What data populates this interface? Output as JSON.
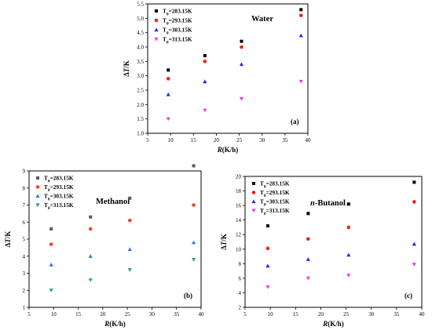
{
  "chart_data": [
    {
      "type": "scatter",
      "panel_label": "(a)",
      "title": "Water",
      "title_italic": false,
      "xlabel": "R(K/h)",
      "ylabel": "ΔT/K",
      "xlim": [
        5,
        40
      ],
      "ylim": [
        1.0,
        5.5
      ],
      "xticks": [
        5,
        10,
        15,
        20,
        25,
        30,
        35,
        40
      ],
      "yticks": [
        1.0,
        1.5,
        2.0,
        2.5,
        3.0,
        3.5,
        4.0,
        4.5,
        5.0,
        5.5
      ],
      "ytick_decimals": 1,
      "x": [
        9.5,
        17.5,
        25.5,
        38.5
      ],
      "legend_placement": "top-left",
      "series": [
        {
          "name": "T0=283.15K",
          "marker": "square",
          "color": "#000000",
          "values": [
            3.2,
            3.7,
            4.2,
            5.3
          ]
        },
        {
          "name": "T0=293.15K",
          "marker": "circle",
          "color": "#e8251b",
          "values": [
            2.9,
            3.5,
            4.0,
            5.1
          ]
        },
        {
          "name": "T0=303.15K",
          "marker": "triangle-up",
          "color": "#1f2fe0",
          "values": [
            2.35,
            2.8,
            3.4,
            4.4
          ]
        },
        {
          "name": "T0=313.15K",
          "marker": "triangle-down",
          "color": "#e83ee0",
          "values": [
            1.5,
            1.8,
            2.2,
            2.8
          ]
        }
      ]
    },
    {
      "type": "scatter",
      "panel_label": "(b)",
      "title": "Methanol",
      "title_italic": false,
      "xlabel": "R(K/h)",
      "ylabel": "ΔT/K",
      "xlim": [
        5,
        40
      ],
      "ylim": [
        1,
        9
      ],
      "xticks": [
        5,
        10,
        15,
        20,
        25,
        30,
        35,
        40
      ],
      "yticks": [
        1,
        2,
        3,
        4,
        5,
        6,
        7,
        8,
        9
      ],
      "ytick_decimals": 0,
      "x": [
        9.5,
        17.5,
        25.5,
        38.5
      ],
      "legend_placement": "top-left",
      "series": [
        {
          "name": "T0=283.15K",
          "marker": "square",
          "color": "#595959",
          "values": [
            5.6,
            6.3,
            7.4,
            9.3
          ]
        },
        {
          "name": "T0=293.15K",
          "marker": "circle",
          "color": "#f0472c",
          "values": [
            4.7,
            5.6,
            6.1,
            7.0
          ]
        },
        {
          "name": "T0=303.15K",
          "marker": "triangle-up",
          "color": "#2a78e0",
          "values": [
            3.5,
            4.0,
            4.4,
            4.8
          ]
        },
        {
          "name": "T0=313.15K",
          "marker": "triangle-down",
          "color": "#27a07a",
          "values": [
            2.0,
            2.6,
            3.2,
            3.8
          ]
        }
      ]
    },
    {
      "type": "scatter",
      "panel_label": "(c)",
      "title_prefix": "n",
      "title": "-Butanol",
      "title_italic": false,
      "xlabel": "R(K/h)",
      "ylabel": "ΔT/K",
      "xlim": [
        5,
        40
      ],
      "ylim": [
        2,
        20
      ],
      "xticks": [
        5,
        10,
        15,
        20,
        25,
        30,
        35,
        40
      ],
      "yticks": [
        2,
        4,
        6,
        8,
        10,
        12,
        14,
        16,
        18,
        20
      ],
      "ytick_decimals": 0,
      "x": [
        9.5,
        17.5,
        25.5,
        38.5
      ],
      "legend_placement": "top-left",
      "series": [
        {
          "name": "T0=283.15K",
          "marker": "square",
          "color": "#000000",
          "values": [
            13.2,
            14.9,
            16.2,
            19.2
          ]
        },
        {
          "name": "T0=293.15K",
          "marker": "circle",
          "color": "#e8251b",
          "values": [
            10.1,
            11.4,
            13.0,
            16.5
          ]
        },
        {
          "name": "T0=303.15K",
          "marker": "triangle-up",
          "color": "#1f2fe0",
          "values": [
            7.7,
            8.6,
            9.2,
            10.7
          ]
        },
        {
          "name": "T0=313.15K",
          "marker": "triangle-down",
          "color": "#e83ee0",
          "values": [
            4.8,
            6.0,
            6.4,
            7.9
          ]
        }
      ]
    }
  ]
}
